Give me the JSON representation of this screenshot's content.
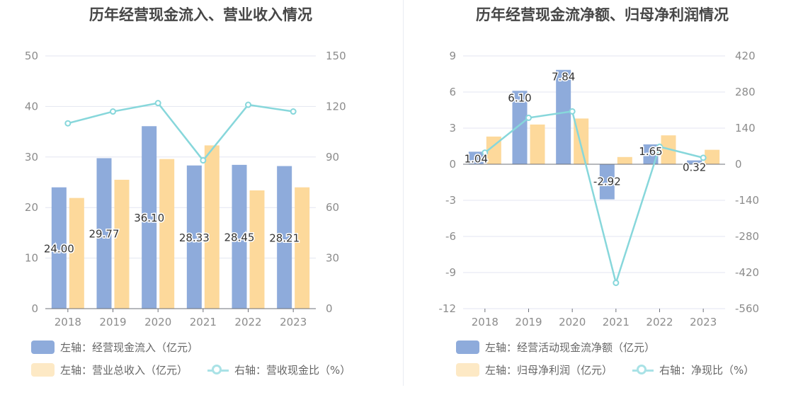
{
  "colors": {
    "bar_blue": "#8eabdb",
    "bar_orange": "#fdd99b",
    "line": "#87d7db",
    "grid": "#e3e6f0",
    "text": "#8c8c8c"
  },
  "left": {
    "title": "历年经营现金流入、营业收入情况",
    "legend": {
      "s1": "左轴：经营现金流入（亿元）",
      "s2": "左轴：营业总收入（亿元）",
      "s3": "右轴：营收现金比（%）"
    }
  },
  "right": {
    "title": "历年经营现金流净额、归母净利润情况",
    "legend": {
      "s1": "左轴：经营活动现金流净额（亿元）",
      "s2": "左轴：归母净利润（亿元）",
      "s3": "右轴：净现比（%）"
    }
  },
  "chart_data": [
    {
      "type": "bar",
      "title": "历年经营现金流入、营业收入情况",
      "categories": [
        "2018",
        "2019",
        "2020",
        "2021",
        "2022",
        "2023"
      ],
      "ylim": [
        0,
        50
      ],
      "y2lim": [
        0,
        150
      ],
      "yticks": [
        0,
        10,
        20,
        30,
        40,
        50
      ],
      "y2ticks": [
        0,
        30,
        60,
        90,
        120,
        150
      ],
      "series": [
        {
          "name": "左轴：经营现金流入（亿元）",
          "axis": "left",
          "type": "bar",
          "values": [
            24.0,
            29.77,
            36.1,
            28.33,
            28.45,
            28.21
          ],
          "labels": [
            "24.00",
            "29.77",
            "36.10",
            "28.33",
            "28.45",
            "28.21"
          ]
        },
        {
          "name": "左轴：营业总收入（亿元）",
          "axis": "left",
          "type": "bar",
          "values": [
            21.9,
            25.5,
            29.6,
            32.3,
            23.4,
            24.0
          ]
        },
        {
          "name": "右轴：营收现金比（%）",
          "axis": "right",
          "type": "line",
          "values": [
            110,
            117,
            122,
            88,
            121,
            117
          ]
        }
      ],
      "legend_position": "bottom-left"
    },
    {
      "type": "bar",
      "title": "历年经营现金流净额、归母净利润情况",
      "categories": [
        "2018",
        "2019",
        "2020",
        "2021",
        "2022",
        "2023"
      ],
      "ylim": [
        -12,
        9
      ],
      "y2lim": [
        -560,
        420
      ],
      "yticks": [
        -12,
        -9,
        -6,
        -3,
        0,
        3,
        6,
        9
      ],
      "y2ticks": [
        -560,
        -420,
        -280,
        -140,
        0,
        140,
        280,
        420
      ],
      "series": [
        {
          "name": "左轴：经营活动现金流净额（亿元）",
          "axis": "left",
          "type": "bar",
          "values": [
            1.04,
            6.1,
            7.84,
            -2.92,
            1.65,
            0.32
          ],
          "labels": [
            "1.04",
            "6.10",
            "7.84",
            "-2.92",
            "1.65",
            "0.32"
          ]
        },
        {
          "name": "左轴：归母净利润（亿元）",
          "axis": "left",
          "type": "bar",
          "values": [
            2.3,
            3.3,
            3.8,
            0.6,
            2.4,
            1.2
          ]
        },
        {
          "name": "右轴：净现比（%）",
          "axis": "right",
          "type": "line",
          "values": [
            45,
            180,
            205,
            -460,
            68,
            25
          ]
        }
      ],
      "legend_position": "bottom-left"
    }
  ]
}
